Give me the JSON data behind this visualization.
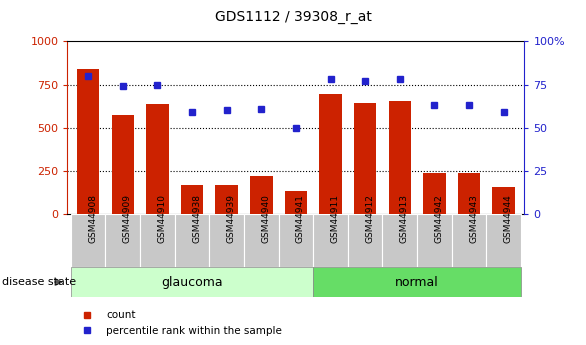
{
  "title": "GDS1112 / 39308_r_at",
  "categories": [
    "GSM44908",
    "GSM44909",
    "GSM44910",
    "GSM44938",
    "GSM44939",
    "GSM44940",
    "GSM44941",
    "GSM44911",
    "GSM44912",
    "GSM44913",
    "GSM44942",
    "GSM44943",
    "GSM44944"
  ],
  "count_values": [
    840,
    575,
    635,
    165,
    170,
    220,
    130,
    695,
    640,
    655,
    240,
    235,
    155
  ],
  "percentile_values": [
    80,
    74,
    75,
    59,
    60,
    61,
    50,
    78,
    77,
    78,
    63,
    63,
    59
  ],
  "groups": [
    {
      "label": "glaucoma",
      "start": 0,
      "end": 7,
      "color": "#ccffcc"
    },
    {
      "label": "normal",
      "start": 7,
      "end": 13,
      "color": "#66dd66"
    }
  ],
  "bar_color": "#cc2200",
  "dot_color": "#2222cc",
  "left_ylim": [
    0,
    1000
  ],
  "right_ylim": [
    0,
    100
  ],
  "left_yticks": [
    0,
    250,
    500,
    750,
    1000
  ],
  "right_yticks": [
    0,
    25,
    50,
    75,
    100
  ],
  "left_yticklabels": [
    "0",
    "250",
    "500",
    "750",
    "1000"
  ],
  "right_yticklabels": [
    "0",
    "25",
    "50",
    "75",
    "100%"
  ],
  "grid_values": [
    250,
    500,
    750
  ],
  "disease_state_label": "disease state",
  "legend_count_label": "count",
  "legend_percentile_label": "percentile rank within the sample"
}
